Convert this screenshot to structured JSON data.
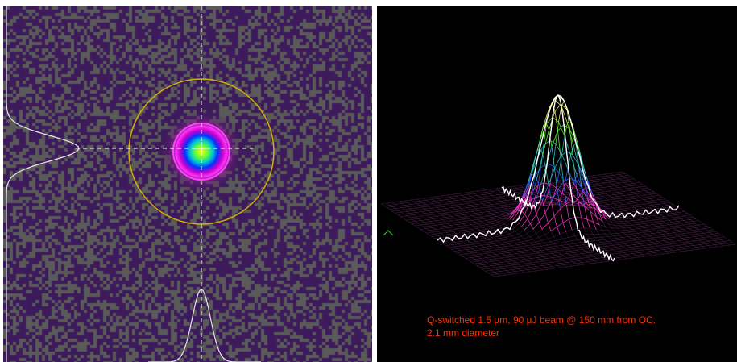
{
  "colors": {
    "noise_purple": "#3d1a5c",
    "noise_gray": "#5a5a5a",
    "aperture_circle": "#d4b000",
    "crosshair": "#ffffff",
    "profile_trace": "#e8e8e8",
    "caption_text": "#ff3300",
    "right_background": "#000000"
  },
  "left_panel": {
    "description_icons": [
      "crosshair-icon",
      "aperture-circle-icon"
    ]
  },
  "right_panel": {
    "caption_line_1": "Q-switched 1.5 µm, 90 µJ beam @ 150 mm from OC.",
    "caption_line_2": "2.1 mm diameter"
  }
}
